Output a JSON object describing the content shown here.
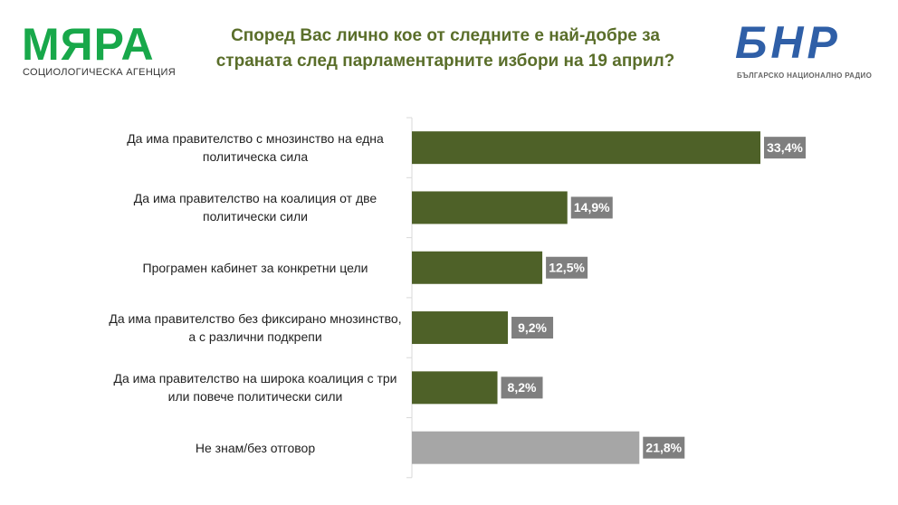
{
  "logo_left": {
    "name": "МЯРА",
    "subtitle": "СОЦИОЛОГИЧЕСКА АГЕНЦИЯ"
  },
  "logo_right": {
    "name": "БНР",
    "subtitle": "БЪЛГАРСКО НАЦИОНАЛНО РАДИО"
  },
  "chart_data": {
    "type": "hbar",
    "title": "Според Вас лично кое от следните е най-добре за страната след парламентарните избори на 19 април?",
    "categories": [
      "Да има правителство с мнозинство на една политическа сила",
      "Да има правителство на коалиция от две политически сили",
      "Програмен кабинет за конкретни цели",
      "Да има правителство без фиксирано мнозинство, а с различни подкрепи",
      "Да има правителство на широка коалиция с три или повече политически сили",
      "Не знам/без отговор"
    ],
    "values": [
      33.4,
      14.9,
      12.5,
      9.2,
      8.2,
      21.8
    ],
    "value_labels": [
      "33,4%",
      "14,9%",
      "12,5%",
      "9,2%",
      "8,2%",
      "21,8%"
    ],
    "colors": [
      "#4e6128",
      "#4e6128",
      "#4e6128",
      "#4e6128",
      "#4e6128",
      "#a6a6a6"
    ],
    "label_box_color": "#7f7f7f"
  }
}
